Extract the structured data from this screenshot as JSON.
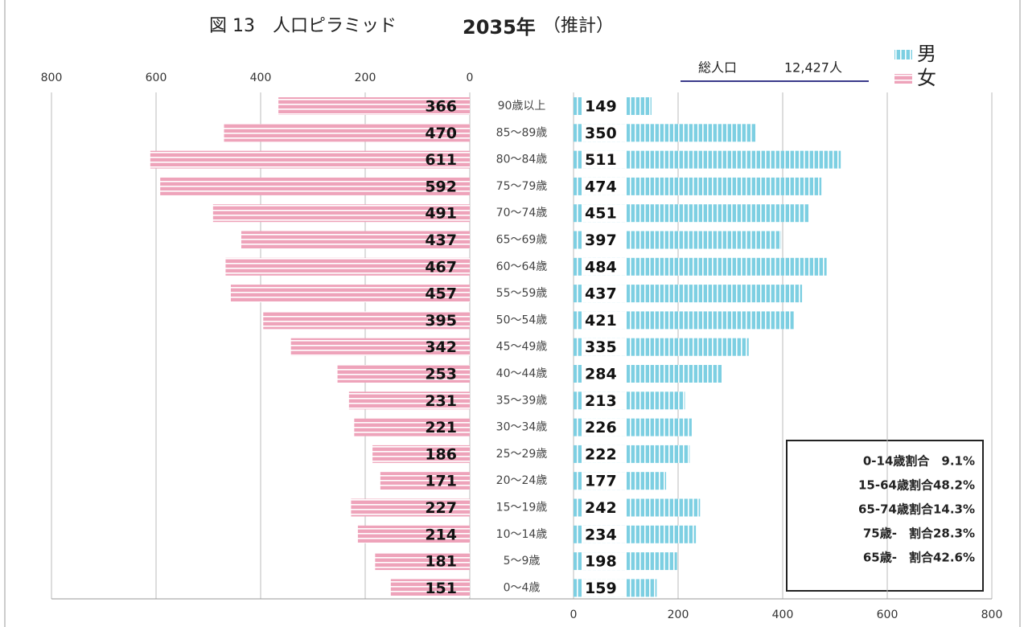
{
  "chart_data": {
    "type": "pyramid",
    "title": "図 13　人口ピラミッド",
    "title_year": "2035年",
    "title_note": "（推計）",
    "total_label": "総人口",
    "total_value": "12,427人",
    "categories": [
      "90歳以上",
      "85～89歳",
      "80～84歳",
      "75～79歳",
      "70～74歳",
      "65～69歳",
      "60～64歳",
      "55～59歳",
      "50～54歳",
      "45～49歳",
      "40～44歳",
      "35～39歳",
      "30～34歳",
      "25～29歳",
      "20～24歳",
      "15～19歳",
      "10～14歳",
      "5～9歳",
      "0～4歳"
    ],
    "series": [
      {
        "name": "男",
        "color": "#7dcfe2",
        "values": [
          149,
          350,
          511,
          474,
          451,
          397,
          484,
          437,
          421,
          335,
          284,
          213,
          226,
          222,
          177,
          242,
          234,
          198,
          159
        ]
      },
      {
        "name": "女",
        "color": "#eea3ba",
        "values": [
          366,
          470,
          611,
          592,
          491,
          437,
          467,
          457,
          395,
          342,
          253,
          231,
          221,
          186,
          171,
          227,
          214,
          181,
          151
        ]
      }
    ],
    "xlim": [
      0,
      800
    ],
    "xticks": [
      0,
      200,
      400,
      600,
      800
    ],
    "grid": true,
    "notes": [
      "0-14歳割合　9.1%",
      "15-64歳割合48.2%",
      "65-74歳割合14.3%",
      "75歳-　割合28.3%",
      "65歳-　割合42.6%"
    ]
  }
}
